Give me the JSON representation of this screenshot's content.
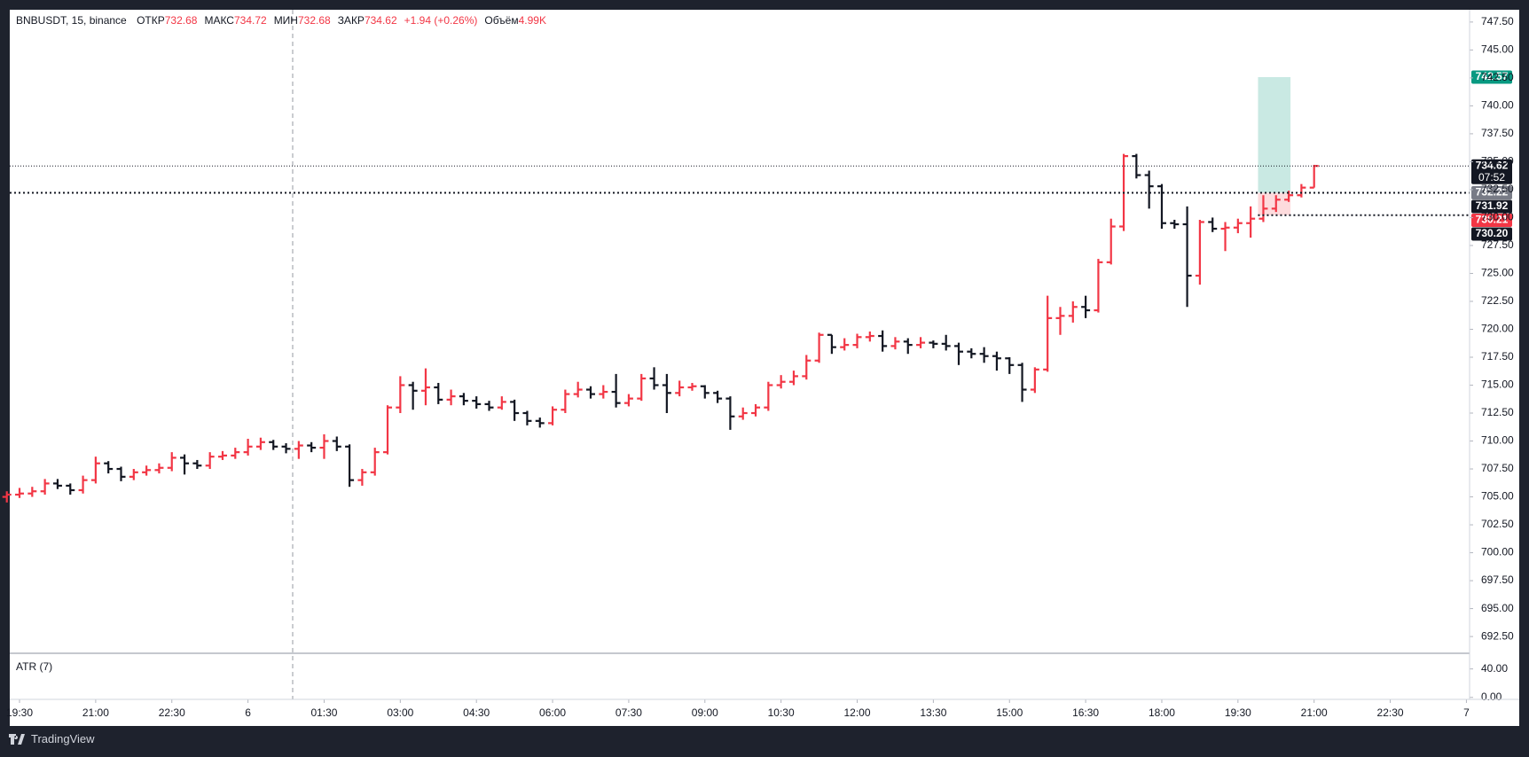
{
  "chart_data": {
    "type": "ohlc",
    "symbol": "BNBUSDT, 15, binance",
    "legend": [
      {
        "label": "ОТКР",
        "value": 732.68
      },
      {
        "label": "МАКС",
        "value": 734.72
      },
      {
        "label": "МИН",
        "value": 732.68
      },
      {
        "label": "ЗАКР",
        "value": 734.62
      },
      {
        "label": "+1.94 (+0.26%)"
      },
      {
        "label": "Объём",
        "value": "4.99K"
      }
    ],
    "up_color": "#f23645",
    "down_color": "#131722",
    "open": [
      705.0,
      705.2,
      705.3,
      705.5,
      706.2,
      706.0,
      705.6,
      706.5,
      708.0,
      707.5,
      706.8,
      707.2,
      707.4,
      707.6,
      708.5,
      708.0,
      707.8,
      708.6,
      708.7,
      709.0,
      709.5,
      709.9,
      709.5,
      709.3,
      709.6,
      709.4,
      710.0,
      709.5,
      706.5,
      707.2,
      709.0,
      713.0,
      715.0,
      714.5,
      714.8,
      713.7,
      714.0,
      713.6,
      713.3,
      713.0,
      713.5,
      712.5,
      711.8,
      711.6,
      712.8,
      714.2,
      714.6,
      714.2,
      714.4,
      713.4,
      713.8,
      715.6,
      715.0,
      714.3,
      714.8,
      714.9,
      714.3,
      713.8,
      712.2,
      712.5,
      713.0,
      715.0,
      715.3,
      715.8,
      717.2,
      719.5,
      718.4,
      718.6,
      719.3,
      719.4,
      718.5,
      718.9,
      718.6,
      718.8,
      718.7,
      718.5,
      718.0,
      717.8,
      717.6,
      717.4,
      716.8,
      714.6,
      716.4,
      721.0,
      721.2,
      722.0,
      721.7,
      726.0,
      729.2,
      735.5,
      733.8,
      732.8,
      729.5,
      729.4,
      724.8,
      729.6,
      729.0,
      729.1,
      729.5,
      729.9,
      730.8,
      731.6,
      732.0,
      732.68
    ],
    "high": [
      705.5,
      705.8,
      705.9,
      706.6,
      706.6,
      706.2,
      706.9,
      708.6,
      708.2,
      707.7,
      707.5,
      707.8,
      708.0,
      709.0,
      708.8,
      708.3,
      709.0,
      709.1,
      709.4,
      710.2,
      710.3,
      710.1,
      709.8,
      710.0,
      709.9,
      710.6,
      710.4,
      709.7,
      707.5,
      709.4,
      713.2,
      715.8,
      715.3,
      716.5,
      715.2,
      714.6,
      714.3,
      714.0,
      713.6,
      714.0,
      713.7,
      712.7,
      712.1,
      713.1,
      714.6,
      715.3,
      714.9,
      715.0,
      716.0,
      714.2,
      716.0,
      716.6,
      716.0,
      715.4,
      715.2,
      715.0,
      714.5,
      714.0,
      713.0,
      713.3,
      715.3,
      715.9,
      716.3,
      717.7,
      719.7,
      719.5,
      719.2,
      719.6,
      719.8,
      719.9,
      719.3,
      719.2,
      719.3,
      719.0,
      719.5,
      718.8,
      718.3,
      718.4,
      718.0,
      717.5,
      717.0,
      716.6,
      723.0,
      722.0,
      722.5,
      723.0,
      726.3,
      729.9,
      735.7,
      735.7,
      734.2,
      733.0,
      729.8,
      731.0,
      729.8,
      730.0,
      729.6,
      729.9,
      731.0,
      732.0,
      732.0,
      732.4,
      733.0,
      734.72
    ],
    "low": [
      704.5,
      704.9,
      705.0,
      705.2,
      705.7,
      705.2,
      705.3,
      706.2,
      707.1,
      706.4,
      706.5,
      706.9,
      707.1,
      707.3,
      707.0,
      707.5,
      707.5,
      708.3,
      708.4,
      708.7,
      709.2,
      709.2,
      708.9,
      708.4,
      709.0,
      708.4,
      709.1,
      705.9,
      706.0,
      706.9,
      708.8,
      712.5,
      712.8,
      713.2,
      713.3,
      713.2,
      713.2,
      712.9,
      712.7,
      712.8,
      711.8,
      711.4,
      711.2,
      711.4,
      712.5,
      713.9,
      713.8,
      713.8,
      713.0,
      713.1,
      713.6,
      714.6,
      712.5,
      714.0,
      714.5,
      713.8,
      713.4,
      711.0,
      711.9,
      712.2,
      712.7,
      714.7,
      715.0,
      715.5,
      717.0,
      717.8,
      718.1,
      718.3,
      718.9,
      718.0,
      718.2,
      717.8,
      718.3,
      718.3,
      718.1,
      716.8,
      717.4,
      717.0,
      716.3,
      716.0,
      713.5,
      714.3,
      716.2,
      719.5,
      720.6,
      721.0,
      721.5,
      725.8,
      728.8,
      733.5,
      730.8,
      729.0,
      729.0,
      722.0,
      724.0,
      728.7,
      727.0,
      728.6,
      728.2,
      729.6,
      730.5,
      731.4,
      731.8,
      732.68
    ],
    "close": [
      705.2,
      705.3,
      705.5,
      706.2,
      706.0,
      705.6,
      706.5,
      708.0,
      707.5,
      706.8,
      707.2,
      707.4,
      707.6,
      708.5,
      708.0,
      707.8,
      708.6,
      708.7,
      709.0,
      709.5,
      709.9,
      709.5,
      709.3,
      709.6,
      709.4,
      710.0,
      709.5,
      706.5,
      707.2,
      709.0,
      713.0,
      715.0,
      714.5,
      714.8,
      713.7,
      714.0,
      713.6,
      713.3,
      713.0,
      713.5,
      712.5,
      711.8,
      711.6,
      712.8,
      714.2,
      714.6,
      714.2,
      714.4,
      713.4,
      713.8,
      715.6,
      715.0,
      714.3,
      714.8,
      714.9,
      714.3,
      713.8,
      712.2,
      712.5,
      713.0,
      715.0,
      715.3,
      715.8,
      717.2,
      719.5,
      718.4,
      718.6,
      719.3,
      719.4,
      718.5,
      718.9,
      718.6,
      718.8,
      718.7,
      718.5,
      718.0,
      717.8,
      717.6,
      717.4,
      716.8,
      714.6,
      716.4,
      721.0,
      721.2,
      722.0,
      721.7,
      726.0,
      729.2,
      735.5,
      733.8,
      732.8,
      729.5,
      729.4,
      724.8,
      729.6,
      729.0,
      729.1,
      729.5,
      729.9,
      730.8,
      731.6,
      732.0,
      732.68,
      734.62
    ],
    "xlim": [
      0.23,
      115.25
    ],
    "xticks": [
      {
        "value": 1,
        "label": "19:30"
      },
      {
        "value": 7,
        "label": "21:00"
      },
      {
        "value": 13,
        "label": "22:30"
      },
      {
        "value": 19,
        "label": "6"
      },
      {
        "value": 25,
        "label": "01:30"
      },
      {
        "value": 31,
        "label": "03:00"
      },
      {
        "value": 37,
        "label": "04:30"
      },
      {
        "value": 43,
        "label": "06:00"
      },
      {
        "value": 49,
        "label": "07:30"
      },
      {
        "value": 55,
        "label": "09:00"
      },
      {
        "value": 61,
        "label": "10:30"
      },
      {
        "value": 67,
        "label": "12:00"
      },
      {
        "value": 73,
        "label": "13:30"
      },
      {
        "value": 79,
        "label": "15:00"
      },
      {
        "value": 85,
        "label": "16:30"
      },
      {
        "value": 91,
        "label": "18:00"
      },
      {
        "value": 97,
        "label": "19:30"
      },
      {
        "value": 103,
        "label": "21:00"
      },
      {
        "value": 109,
        "label": "22:30"
      },
      {
        "value": 115,
        "label": "7"
      }
    ],
    "ylim": [
      691.0,
      748.6
    ],
    "yticks": [
      {
        "value": 692.5,
        "label": "692.50"
      },
      {
        "value": 695,
        "label": "695.00"
      },
      {
        "value": 697.5,
        "label": "697.50"
      },
      {
        "value": 700,
        "label": "700.00"
      },
      {
        "value": 702.5,
        "label": "702.50"
      },
      {
        "value": 705,
        "label": "705.00"
      },
      {
        "value": 707.5,
        "label": "707.50"
      },
      {
        "value": 710,
        "label": "710.00"
      },
      {
        "value": 712.5,
        "label": "712.50"
      },
      {
        "value": 715,
        "label": "715.00"
      },
      {
        "value": 717.5,
        "label": "717.50"
      },
      {
        "value": 720,
        "label": "720.00"
      },
      {
        "value": 722.5,
        "label": "722.50"
      },
      {
        "value": 725,
        "label": "725.00"
      },
      {
        "value": 727.5,
        "label": "727.50"
      },
      {
        "value": 730,
        "label": "730.00"
      },
      {
        "value": 732.5,
        "label": "732.50"
      },
      {
        "value": 735,
        "label": "735.00"
      },
      {
        "value": 737.5,
        "label": "737.50"
      },
      {
        "value": 740,
        "label": "740.00"
      },
      {
        "value": 742.5,
        "label": "742.50"
      },
      {
        "value": 745,
        "label": "745.00"
      },
      {
        "value": 747.5,
        "label": "747.50"
      }
    ],
    "price_labels": [
      {
        "value": 742.57,
        "label": "742.57",
        "color": "#089981",
        "line": "none"
      },
      {
        "value": 734.62,
        "label": "734.62",
        "sub": "07:52",
        "color": "#131722",
        "line": "thin"
      },
      {
        "value": 732.22,
        "label": "732.22",
        "color": "#787b86",
        "line": "thick"
      },
      {
        "value": 731.92,
        "label": "731.92",
        "color": "#131722",
        "line": "none"
      },
      {
        "value": 730.21,
        "label": "730.21",
        "color": "#f23645",
        "line": "thick-right"
      },
      {
        "value": 730.2,
        "label": "730.20",
        "color": "#131722",
        "line": "none"
      }
    ],
    "position": {
      "entry": 732.22,
      "target": 742.57,
      "stop": 730.21
    },
    "atr": {
      "label": "ATR (7)",
      "ylim": [
        -2.8,
        62
      ],
      "yticks": [
        {
          "value": 40,
          "label": "40.00"
        },
        {
          "value": 0,
          "label": "0.00"
        }
      ]
    }
  },
  "footer": "TradingView"
}
